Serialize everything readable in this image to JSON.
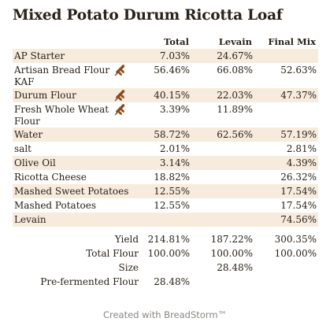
{
  "title": "Mixed Potato Durum Ricotta Loaf",
  "headers": {
    "total": "Total",
    "levain": "Levain",
    "final": "Final Mix"
  },
  "rows": [
    {
      "name": "AP Starter",
      "icon": "",
      "total": "7.03%",
      "levain": "24.67%",
      "final": ""
    },
    {
      "name": "Artisan Bread Flour KAF",
      "icon": "wheat-icon",
      "total": "56.46%",
      "levain": "66.08%",
      "final": "52.63%"
    },
    {
      "name": "Durum Flour",
      "icon": "wheat-icon",
      "total": "40.15%",
      "levain": "22.03%",
      "final": "47.37%"
    },
    {
      "name": "Fresh Whole Wheat Flour",
      "icon": "wheat-icon",
      "total": "3.39%",
      "levain": "11.89%",
      "final": ""
    },
    {
      "name": "Water",
      "icon": "",
      "total": "58.72%",
      "levain": "62.56%",
      "final": "57.19%"
    },
    {
      "name": "salt",
      "icon": "",
      "total": "2.01%",
      "levain": "",
      "final": "2.81%"
    },
    {
      "name": "Olive Oil",
      "icon": "",
      "total": "3.14%",
      "levain": "",
      "final": "4.39%"
    },
    {
      "name": "Ricotta Cheese",
      "icon": "",
      "total": "18.82%",
      "levain": "",
      "final": "26.32%"
    },
    {
      "name": "Mashed Sweet Potatoes",
      "icon": "",
      "total": "12.55%",
      "levain": "",
      "final": "17.54%"
    },
    {
      "name": "Mashed Potatoes",
      "icon": "",
      "total": "12.55%",
      "levain": "",
      "final": "17.54%"
    },
    {
      "name": "Levain",
      "icon": "",
      "total": "",
      "levain": "",
      "final": "74.56%"
    }
  ],
  "summary": [
    {
      "label": "Yield",
      "total": "214.81%",
      "levain": "187.22%",
      "final": "300.35%"
    },
    {
      "label": "Total Flour",
      "total": "100.00%",
      "levain": "100.00%",
      "final": "100.00%"
    },
    {
      "label": "Size",
      "total": "",
      "levain": "28.48%",
      "final": ""
    },
    {
      "label": "Pre-fermented Flour",
      "total": "28.48%",
      "levain": "",
      "final": ""
    }
  ],
  "footer": "Created with BreadStorm™",
  "colors": {
    "stripe": "#f7ebdd",
    "icon": "#8a4a1c",
    "text": "#2a2118",
    "footer": "#8a8580"
  }
}
